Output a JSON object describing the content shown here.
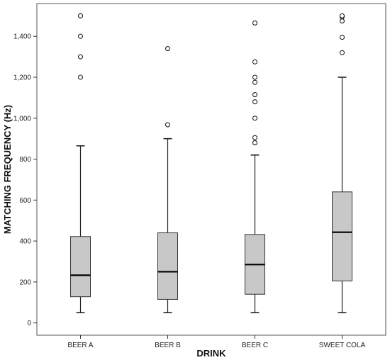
{
  "chart_data": {
    "type": "boxplot",
    "title": "",
    "xlabel": "DRINK",
    "ylabel": "MATCHING FREQUENCY (Hz)",
    "ylim": [
      -60,
      1560
    ],
    "yticks": [
      0,
      200,
      400,
      600,
      800,
      1000,
      1200,
      1400
    ],
    "ytick_labels": [
      "0",
      "200",
      "400",
      "600",
      "800",
      "1,000",
      "1,200",
      "1,400"
    ],
    "grid": false,
    "box_color": "#c8c8c8",
    "plot_background": "#ffffff",
    "categories": [
      "BEER A",
      "BEER B",
      "BEER C",
      "SWEET COLA"
    ],
    "boxes": [
      {
        "category": "BEER A",
        "whisker_low": 50,
        "q1": 128,
        "median": 233,
        "q3": 422,
        "whisker_high": 865,
        "outliers": [
          1200,
          1300,
          1400,
          1500,
          1500
        ]
      },
      {
        "category": "BEER B",
        "whisker_low": 50,
        "q1": 115,
        "median": 250,
        "q3": 440,
        "whisker_high": 900,
        "outliers": [
          968,
          1340
        ]
      },
      {
        "category": "BEER C",
        "whisker_low": 50,
        "q1": 140,
        "median": 285,
        "q3": 432,
        "whisker_high": 820,
        "outliers": [
          880,
          905,
          1000,
          1080,
          1115,
          1175,
          1200,
          1275,
          1465
        ]
      },
      {
        "category": "SWEET COLA",
        "whisker_low": 50,
        "q1": 205,
        "median": 443,
        "q3": 640,
        "whisker_high": 1200,
        "outliers": [
          1320,
          1395,
          1475,
          1495,
          1500
        ]
      }
    ]
  }
}
